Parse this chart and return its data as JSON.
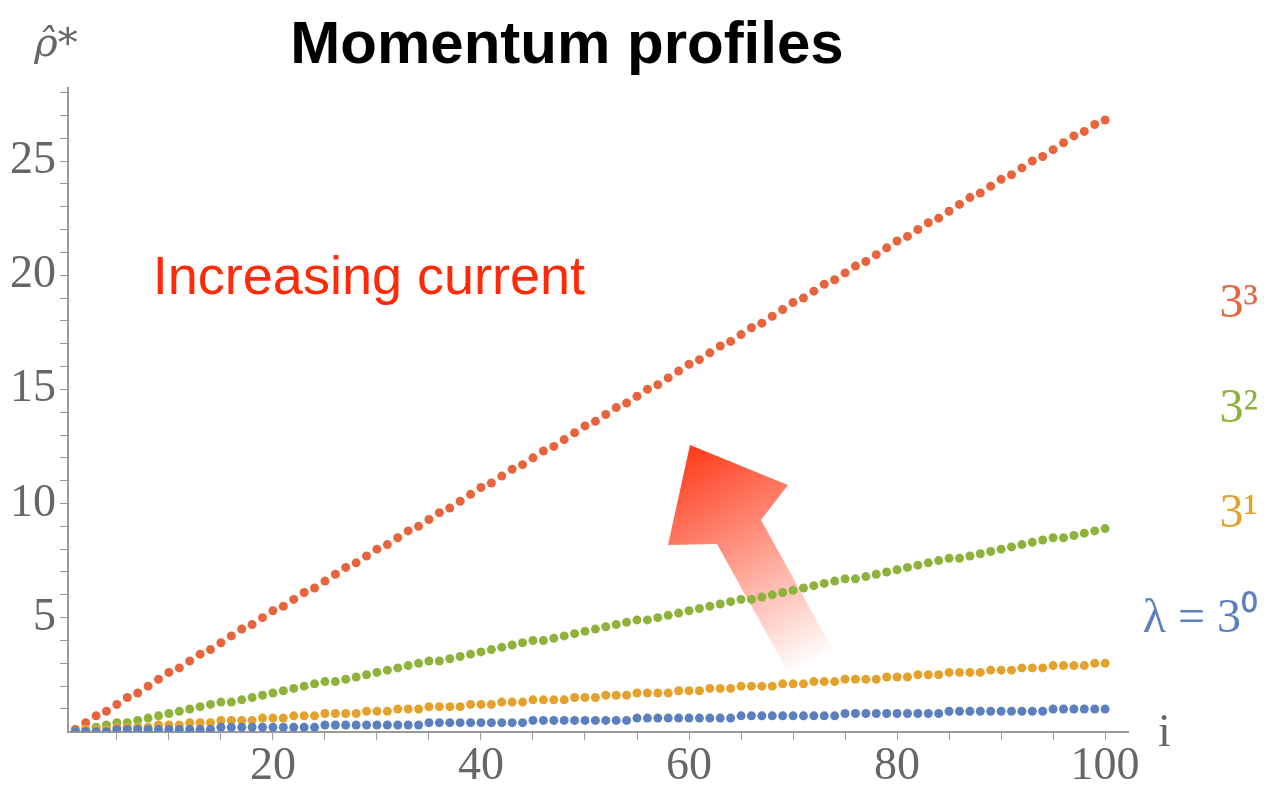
{
  "chart_data": {
    "type": "scatter",
    "title": "Momentum profiles",
    "xlabel": "i",
    "ylabel": "ρ̂*",
    "x": [
      1,
      2,
      3,
      4,
      5,
      6,
      7,
      8,
      9,
      10,
      11,
      12,
      13,
      14,
      15,
      16,
      17,
      18,
      19,
      20,
      21,
      22,
      23,
      24,
      25,
      26,
      27,
      28,
      29,
      30,
      31,
      32,
      33,
      34,
      35,
      36,
      37,
      38,
      39,
      40,
      41,
      42,
      43,
      44,
      45,
      46,
      47,
      48,
      49,
      50,
      51,
      52,
      53,
      54,
      55,
      56,
      57,
      58,
      59,
      60,
      61,
      62,
      63,
      64,
      65,
      66,
      67,
      68,
      69,
      70,
      71,
      72,
      73,
      74,
      75,
      76,
      77,
      78,
      79,
      80,
      81,
      82,
      83,
      84,
      85,
      86,
      87,
      88,
      89,
      90,
      91,
      92,
      93,
      94,
      95,
      96,
      97,
      98,
      99,
      100
    ],
    "series": [
      {
        "name": "λ = 3⁰",
        "color": "#5b7fbf",
        "values": [
          0,
          0,
          0,
          0,
          0.1,
          0.1,
          0.1,
          0.1,
          0.1,
          0.1,
          0.1,
          0.1,
          0.1,
          0.1,
          0.2,
          0.2,
          0.2,
          0.2,
          0.2,
          0.2,
          0.2,
          0.2,
          0.2,
          0.2,
          0.3,
          0.3,
          0.3,
          0.3,
          0.3,
          0.3,
          0.3,
          0.3,
          0.3,
          0.3,
          0.4,
          0.4,
          0.4,
          0.4,
          0.4,
          0.4,
          0.4,
          0.4,
          0.4,
          0.4,
          0.5,
          0.5,
          0.5,
          0.5,
          0.5,
          0.5,
          0.5,
          0.5,
          0.5,
          0.5,
          0.6,
          0.6,
          0.6,
          0.6,
          0.6,
          0.6,
          0.6,
          0.6,
          0.6,
          0.6,
          0.7,
          0.7,
          0.7,
          0.7,
          0.7,
          0.7,
          0.7,
          0.7,
          0.7,
          0.7,
          0.8,
          0.8,
          0.8,
          0.8,
          0.8,
          0.8,
          0.8,
          0.8,
          0.8,
          0.8,
          0.9,
          0.9,
          0.9,
          0.9,
          0.9,
          0.9,
          0.9,
          0.9,
          0.9,
          0.9,
          1.0,
          1.0,
          1.0,
          1.0,
          1.0,
          1.0
        ]
      },
      {
        "name": "3¹",
        "color": "#e4a22c",
        "values": [
          0,
          0.1,
          0.1,
          0.1,
          0.2,
          0.2,
          0.2,
          0.2,
          0.3,
          0.3,
          0.3,
          0.4,
          0.4,
          0.4,
          0.5,
          0.5,
          0.5,
          0.5,
          0.6,
          0.6,
          0.6,
          0.7,
          0.7,
          0.7,
          0.8,
          0.8,
          0.8,
          0.8,
          0.9,
          0.9,
          0.9,
          1.0,
          1.0,
          1.0,
          1.1,
          1.1,
          1.1,
          1.1,
          1.2,
          1.2,
          1.2,
          1.3,
          1.3,
          1.3,
          1.4,
          1.4,
          1.4,
          1.4,
          1.5,
          1.5,
          1.5,
          1.6,
          1.6,
          1.6,
          1.7,
          1.7,
          1.7,
          1.7,
          1.8,
          1.8,
          1.8,
          1.9,
          1.9,
          1.9,
          2.0,
          2.0,
          2.0,
          2.0,
          2.1,
          2.1,
          2.1,
          2.2,
          2.2,
          2.2,
          2.3,
          2.3,
          2.3,
          2.3,
          2.4,
          2.4,
          2.4,
          2.5,
          2.5,
          2.5,
          2.6,
          2.6,
          2.6,
          2.6,
          2.7,
          2.7,
          2.7,
          2.8,
          2.8,
          2.8,
          2.9,
          2.9,
          2.9,
          2.9,
          3.0,
          3.0
        ]
      },
      {
        "name": "3²",
        "color": "#8db33a",
        "values": [
          0,
          0.1,
          0.2,
          0.3,
          0.4,
          0.4,
          0.5,
          0.6,
          0.7,
          0.8,
          0.9,
          1.0,
          1.1,
          1.2,
          1.3,
          1.3,
          1.4,
          1.5,
          1.6,
          1.7,
          1.8,
          1.9,
          2.0,
          2.1,
          2.2,
          2.2,
          2.3,
          2.4,
          2.5,
          2.6,
          2.7,
          2.8,
          2.9,
          3.0,
          3.1,
          3.1,
          3.2,
          3.3,
          3.4,
          3.5,
          3.6,
          3.7,
          3.8,
          3.9,
          4.0,
          4.0,
          4.1,
          4.2,
          4.3,
          4.4,
          4.5,
          4.6,
          4.7,
          4.8,
          4.9,
          4.9,
          5.0,
          5.1,
          5.2,
          5.3,
          5.4,
          5.5,
          5.6,
          5.7,
          5.8,
          5.8,
          5.9,
          6.0,
          6.1,
          6.2,
          6.3,
          6.4,
          6.5,
          6.6,
          6.7,
          6.7,
          6.8,
          6.9,
          7.0,
          7.1,
          7.2,
          7.3,
          7.4,
          7.5,
          7.6,
          7.6,
          7.7,
          7.8,
          7.9,
          8.0,
          8.1,
          8.2,
          8.3,
          8.4,
          8.5,
          8.5,
          8.6,
          8.7,
          8.8,
          8.9
        ]
      },
      {
        "name": "3³",
        "color": "#e8643c",
        "values": [
          0.1,
          0.4,
          0.7,
          0.9,
          1.2,
          1.5,
          1.7,
          2.0,
          2.3,
          2.6,
          2.8,
          3.1,
          3.4,
          3.6,
          3.9,
          4.2,
          4.5,
          4.7,
          5.0,
          5.3,
          5.5,
          5.8,
          6.1,
          6.3,
          6.6,
          6.9,
          7.2,
          7.4,
          7.7,
          8.0,
          8.2,
          8.5,
          8.8,
          9.0,
          9.3,
          9.6,
          9.8,
          10.1,
          10.4,
          10.7,
          10.9,
          11.2,
          11.5,
          11.7,
          12.0,
          12.3,
          12.5,
          12.8,
          13.1,
          13.4,
          13.6,
          13.9,
          14.2,
          14.4,
          14.7,
          15.0,
          15.2,
          15.5,
          15.8,
          16.1,
          16.3,
          16.6,
          16.9,
          17.1,
          17.4,
          17.7,
          17.9,
          18.2,
          18.5,
          18.8,
          19.0,
          19.3,
          19.6,
          19.8,
          20.1,
          20.4,
          20.6,
          20.9,
          21.2,
          21.5,
          21.7,
          22.0,
          22.3,
          22.5,
          22.8,
          23.1,
          23.4,
          23.6,
          23.9,
          24.2,
          24.4,
          24.7,
          25.0,
          25.2,
          25.5,
          25.8,
          26.1,
          26.3,
          26.6,
          26.8
        ]
      }
    ],
    "annotations": [
      "Increasing current"
    ],
    "xlim": [
      0.3,
      102.2
    ],
    "xticks": [
      {
        "value": 5,
        "label": null
      },
      {
        "value": 10,
        "label": null
      },
      {
        "value": 15,
        "label": null
      },
      20,
      {
        "value": 25,
        "label": null
      },
      {
        "value": 30,
        "label": null
      },
      {
        "value": 35,
        "label": null
      },
      40,
      {
        "value": 45,
        "label": null
      },
      {
        "value": 50,
        "label": null
      },
      {
        "value": 55,
        "label": null
      },
      60,
      {
        "value": 65,
        "label": null
      },
      {
        "value": 70,
        "label": null
      },
      {
        "value": 75,
        "label": null
      },
      80,
      {
        "value": 85,
        "label": null
      },
      {
        "value": 90,
        "label": null
      },
      {
        "value": 95,
        "label": null
      },
      100
    ],
    "ylim": [
      0,
      28.2
    ],
    "yticks": [
      {
        "value": 1,
        "label": null
      },
      {
        "value": 2,
        "label": null
      },
      {
        "value": 3,
        "label": null
      },
      {
        "value": 4,
        "label": null
      },
      5,
      {
        "value": 6,
        "label": null
      },
      {
        "value": 7,
        "label": null
      },
      {
        "value": 8,
        "label": null
      },
      {
        "value": 9,
        "label": null
      },
      10,
      {
        "value": 11,
        "label": null
      },
      {
        "value": 12,
        "label": null
      },
      {
        "value": 13,
        "label": null
      },
      {
        "value": 14,
        "label": null
      },
      15,
      {
        "value": 16,
        "label": null
      },
      {
        "value": 17,
        "label": null
      },
      {
        "value": 18,
        "label": null
      },
      {
        "value": 19,
        "label": null
      },
      20,
      {
        "value": 21,
        "label": null
      },
      {
        "value": 22,
        "label": null
      },
      {
        "value": 23,
        "label": null
      },
      {
        "value": 24,
        "label": null
      },
      25,
      {
        "value": 26,
        "label": null
      },
      {
        "value": 27,
        "label": null
      },
      {
        "value": 28,
        "label": null
      }
    ],
    "grid": false,
    "legend": false,
    "marker": "circle"
  }
}
